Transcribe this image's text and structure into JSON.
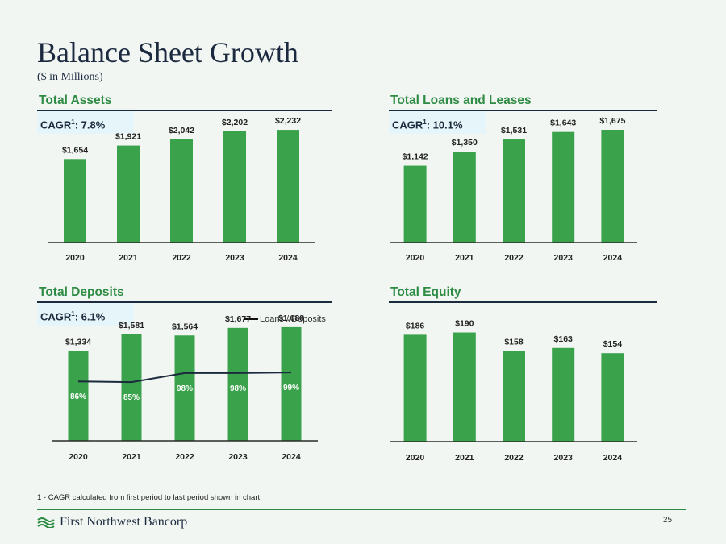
{
  "page": {
    "title": "Balance Sheet Growth",
    "subtitle": "($ in Millions)",
    "footnote": "1 - CAGR calculated from first period to last period shown in chart",
    "logo_text": "First Northwest Bancorp",
    "page_number": "25",
    "bar_color": "#3aa24b",
    "accent_color": "#2e8b43",
    "line_color": "#1b2a3d"
  },
  "panels": {
    "assets": {
      "title": "Total Assets",
      "cagr_label": "CAGR",
      "cagr_sup": "1",
      "cagr_value": ": 7.8%"
    },
    "loans": {
      "title": "Total Loans and Leases",
      "cagr_label": "CAGR",
      "cagr_sup": "1",
      "cagr_value": ": 10.1%"
    },
    "deposits": {
      "title": "Total Deposits",
      "cagr_label": "CAGR",
      "cagr_sup": "1",
      "cagr_value": ": 6.1%",
      "legend": "Loans / Deposits"
    },
    "equity": {
      "title": "Total Equity"
    }
  },
  "chart_data": [
    {
      "id": "assets",
      "type": "bar",
      "title": "Total Assets",
      "categories": [
        "2020",
        "2021",
        "2022",
        "2023",
        "2024"
      ],
      "values": [
        1654,
        1921,
        2042,
        2202,
        2232
      ],
      "labels": [
        "$1,654",
        "$1,921",
        "$2,042",
        "$2,202",
        "$2,232"
      ],
      "ylim": [
        0,
        2600
      ]
    },
    {
      "id": "loans",
      "type": "bar",
      "title": "Total Loans and Leases",
      "categories": [
        "2020",
        "2021",
        "2022",
        "2023",
        "2024"
      ],
      "values": [
        1142,
        1350,
        1531,
        1643,
        1675
      ],
      "labels": [
        "$1,142",
        "$1,350",
        "$1,531",
        "$1,643",
        "$1,675"
      ],
      "ylim": [
        0,
        1950
      ]
    },
    {
      "id": "deposits",
      "type": "bar",
      "title": "Total Deposits",
      "categories": [
        "2020",
        "2021",
        "2022",
        "2023",
        "2024"
      ],
      "values": [
        1334,
        1581,
        1564,
        1677,
        1688
      ],
      "labels": [
        "$1,334",
        "$1,581",
        "$1,564",
        "$1,677",
        "$1,688"
      ],
      "ylim": [
        0,
        1950
      ],
      "line_series": {
        "name": "Loans / Deposits",
        "values": [
          86,
          85,
          98,
          98,
          99
        ],
        "labels": [
          "86%",
          "85%",
          "98%",
          "98%",
          "99%"
        ],
        "ylim": [
          0,
          190
        ]
      }
    },
    {
      "id": "equity",
      "type": "bar",
      "title": "Total Equity",
      "categories": [
        "2020",
        "2021",
        "2022",
        "2023",
        "2024"
      ],
      "values": [
        186,
        190,
        158,
        163,
        154
      ],
      "labels": [
        "$186",
        "$190",
        "$158",
        "$163",
        "$154"
      ],
      "ylim": [
        0,
        230
      ]
    }
  ]
}
